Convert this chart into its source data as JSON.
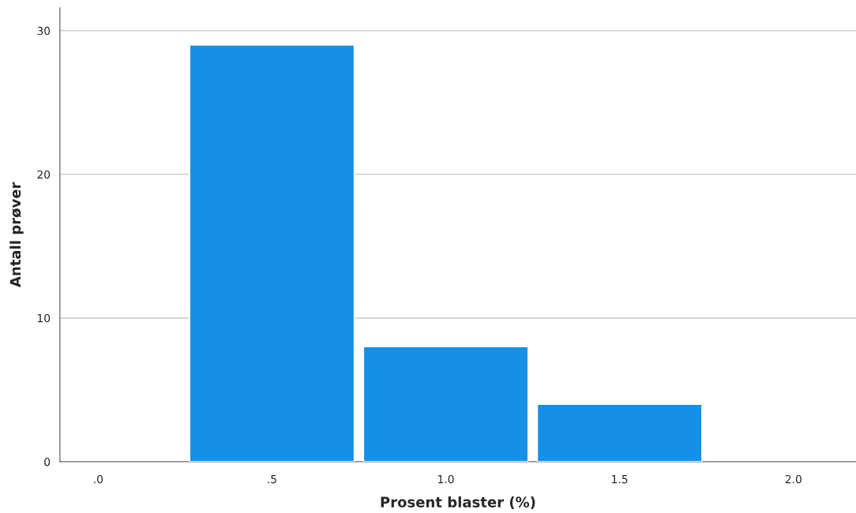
{
  "chart_data": {
    "type": "bar",
    "xlabel": "Prosent blaster (%)",
    "ylabel": "Antall prøver",
    "x": [
      0.5,
      1.0,
      1.5
    ],
    "values": [
      29,
      8,
      4
    ],
    "color": "#1490e6",
    "xlim": [
      -0.11,
      2.18
    ],
    "xticks": [
      {
        "value": 0,
        "label": ".0"
      },
      {
        "value": 0.5,
        "label": ".5"
      },
      {
        "value": 1.0,
        "label": "1.0"
      },
      {
        "value": 1.5,
        "label": "1.5"
      },
      {
        "value": 2.0,
        "label": "2.0"
      }
    ],
    "ylim": [
      0,
      31.6
    ],
    "yticks": [
      0,
      10,
      20,
      30
    ],
    "grid": "y"
  }
}
